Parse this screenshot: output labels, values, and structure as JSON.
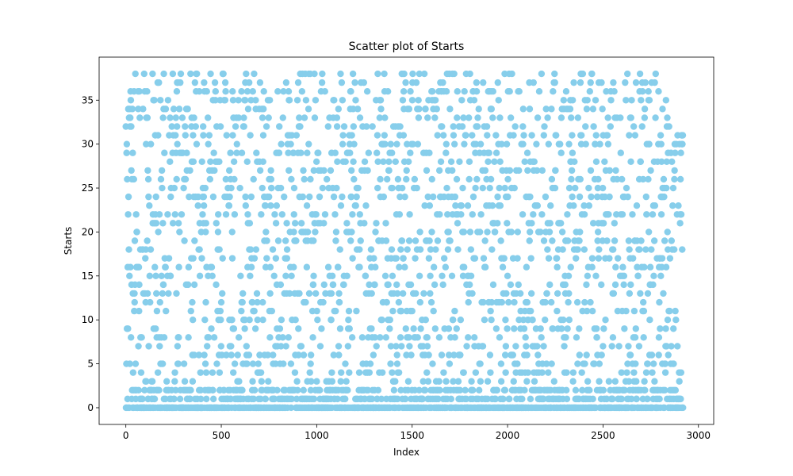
{
  "chart_data": {
    "type": "scatter",
    "title": "Scatter plot of Starts",
    "xlabel": "Index",
    "ylabel": "Starts",
    "xlim": [
      -140,
      3080
    ],
    "ylim": [
      -1.9,
      39.9
    ],
    "x_ticks": [
      0,
      500,
      1000,
      1500,
      2000,
      2500,
      3000
    ],
    "y_ticks": [
      0,
      5,
      10,
      15,
      20,
      25,
      30,
      35
    ],
    "n_points": 2920,
    "x_range": [
      0,
      2919
    ],
    "y_integer_range": [
      0,
      38
    ],
    "marker_color": "#87ceeb",
    "grid": false,
    "legend": "none"
  }
}
